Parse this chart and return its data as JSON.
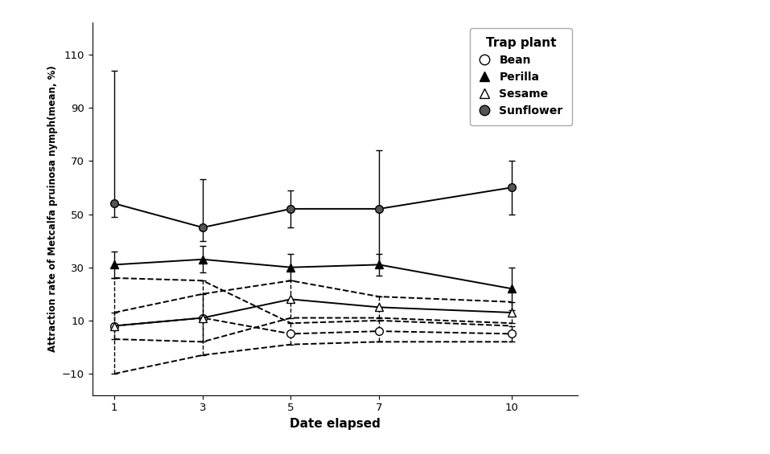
{
  "x": [
    1,
    3,
    5,
    7,
    10
  ],
  "bean": [
    8,
    11,
    5,
    6,
    5
  ],
  "perilla": [
    31,
    33,
    30,
    31,
    22
  ],
  "sesame": [
    8,
    11,
    18,
    15,
    13
  ],
  "sunflower": [
    54,
    45,
    52,
    52,
    60
  ],
  "bean_err_lo": [
    18,
    14,
    4,
    4,
    3
  ],
  "bean_err_hi": [
    18,
    14,
    4,
    4,
    3
  ],
  "perilla_err_lo": [
    5,
    5,
    5,
    4,
    8
  ],
  "perilla_err_hi": [
    5,
    5,
    5,
    4,
    8
  ],
  "sesame_err_lo": [
    5,
    9,
    7,
    4,
    4
  ],
  "sesame_err_hi": [
    5,
    9,
    7,
    4,
    4
  ],
  "sunflower_err_lo": [
    5,
    5,
    7,
    22,
    10
  ],
  "sunflower_err_hi": [
    50,
    18,
    7,
    22,
    10
  ],
  "xlabel": "Date elapsed",
  "ylabel": "Attraction rate of Metcalfa pruinosa nymph(mean, %)",
  "legend_title": "Trap plant",
  "yticks": [
    -10,
    10,
    30,
    50,
    70,
    90,
    110
  ],
  "xticks": [
    1,
    3,
    5,
    7,
    10
  ],
  "ylim": [
    -18,
    122
  ],
  "xlim": [
    0.5,
    11.5
  ],
  "bg_color": "#ffffff"
}
